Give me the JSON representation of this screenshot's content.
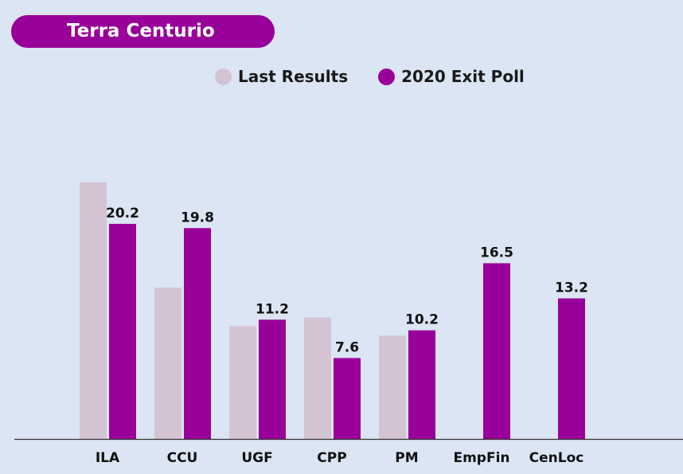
{
  "chart_data": {
    "type": "bar",
    "title": "Terra Centurio",
    "categories": [
      "ILA",
      "CCU",
      "UGF",
      "CPP",
      "PM",
      "EmpFin",
      "CenLoc"
    ],
    "series": [
      {
        "name": "Last Results",
        "color": "#d4c4d3",
        "values": [
          24.1,
          14.2,
          10.6,
          11.4,
          9.7,
          null,
          null
        ],
        "labels": [
          "",
          "",
          "",
          "",
          "",
          "",
          ""
        ]
      },
      {
        "name": "2020 Exit Poll",
        "color": "#990099",
        "values": [
          20.2,
          19.8,
          11.2,
          7.6,
          10.2,
          16.5,
          13.2
        ],
        "labels": [
          "20.2",
          "19.8",
          "11.2",
          "7.6",
          "10.2",
          "16.5",
          "13.2"
        ]
      }
    ],
    "ylim": [
      0,
      30
    ],
    "grid": false,
    "legend": "top-center"
  },
  "colors": {
    "background": "#dbe5f3",
    "accent": "#990099"
  }
}
